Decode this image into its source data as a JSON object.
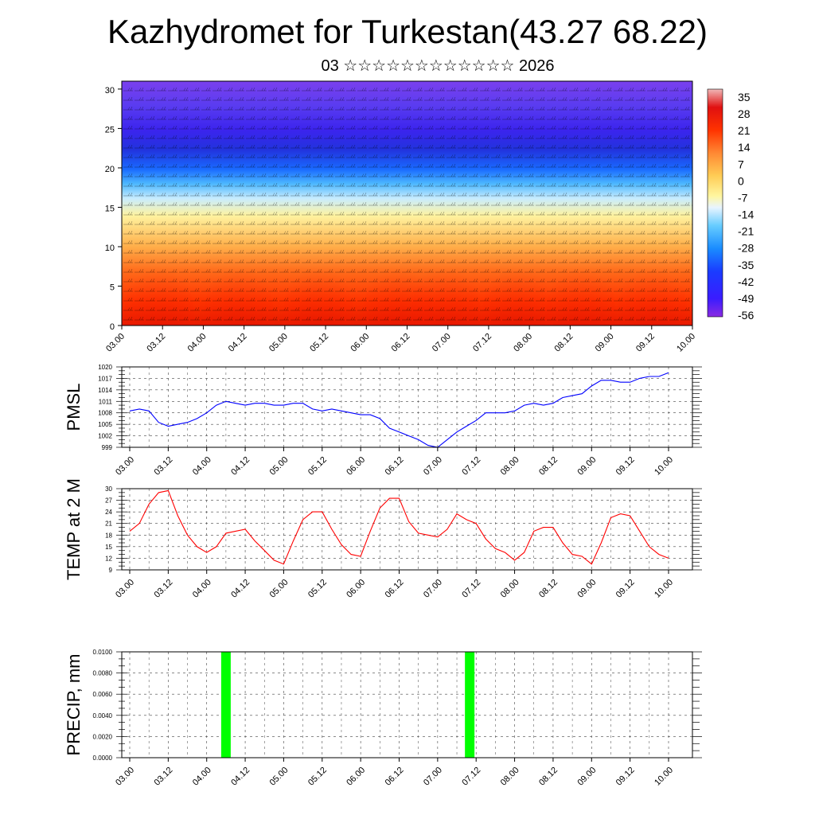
{
  "title": "Kazhydromet for Turkestan(43.27 68.22)",
  "subtitle": "03 ☆☆☆☆☆☆☆☆☆☆☆☆ 2026",
  "chart_data": [
    {
      "type": "heatmap",
      "id": "cross-section",
      "description_fields": "temperature cross-section with wind barbs",
      "x_ticks": [
        "03.00",
        "03.12",
        "04.00",
        "04.12",
        "05.00",
        "05.12",
        "06.00",
        "06.12",
        "07.00",
        "07.12",
        "08.00",
        "08.12",
        "09.00",
        "09.12",
        "10.00"
      ],
      "y_ticks": [
        "0",
        "5",
        "10",
        "15",
        "20",
        "25",
        "30"
      ],
      "ylim": [
        0,
        31
      ],
      "colorbar": {
        "labels": [
          "35",
          "28",
          "21",
          "14",
          "7",
          "0",
          "-7",
          "-14",
          "-21",
          "-28",
          "-35",
          "-42",
          "-49",
          "-56"
        ],
        "range": [
          -60,
          38
        ]
      }
    },
    {
      "type": "line",
      "id": "pmsl",
      "ylabel": "PMSL",
      "color": "#0000ff",
      "y_ticks": [
        "1020",
        "1017",
        "1014",
        "1011",
        "1008",
        "1005",
        "1002",
        "999"
      ],
      "ylim": [
        999,
        1020
      ],
      "x_ticks": [
        "03.00",
        "03.12",
        "04.00",
        "04.12",
        "05.00",
        "05.12",
        "06.00",
        "06.12",
        "07.00",
        "07.12",
        "08.00",
        "08.12",
        "09.00",
        "09.12",
        "10.00"
      ],
      "x_hours": [
        0,
        3,
        6,
        9,
        12,
        15,
        18,
        21,
        24,
        27,
        30,
        33,
        36,
        39,
        42,
        45,
        48,
        51,
        54,
        57,
        60,
        63,
        66,
        69,
        72,
        75,
        78,
        81,
        84,
        87,
        90,
        93,
        96,
        99,
        102,
        105,
        108,
        111,
        114,
        117,
        120,
        123,
        126,
        129,
        132,
        135,
        138,
        141,
        144,
        147,
        150,
        153,
        156,
        159,
        162,
        165,
        168
      ],
      "values": [
        1008.5,
        1009,
        1008.5,
        1005.5,
        1004.5,
        1005,
        1005.5,
        1006.5,
        1008,
        1010,
        1011,
        1010.5,
        1010,
        1010.5,
        1010.5,
        1010,
        1010,
        1010.5,
        1010.5,
        1009,
        1008.5,
        1009,
        1008.5,
        1008,
        1007.5,
        1007.5,
        1006.5,
        1004,
        1003,
        1002,
        1001,
        999.5,
        999,
        1001,
        1003,
        1004.5,
        1006,
        1008,
        1008,
        1008,
        1008.5,
        1010,
        1010.5,
        1010,
        1010.5,
        1012,
        1012.5,
        1013,
        1015,
        1016.5,
        1016.5,
        1016,
        1016,
        1017,
        1017.5,
        1017.5,
        1018.5
      ]
    },
    {
      "type": "line",
      "id": "temp2m",
      "ylabel": "TEMP at 2 M",
      "color": "#ff0000",
      "y_ticks": [
        "30",
        "27",
        "24",
        "21",
        "18",
        "15",
        "12",
        "9"
      ],
      "ylim": [
        9,
        30
      ],
      "x_ticks": [
        "03.00",
        "03.12",
        "04.00",
        "04.12",
        "05.00",
        "05.12",
        "06.00",
        "06.12",
        "07.00",
        "07.12",
        "08.00",
        "08.12",
        "09.00",
        "09.12",
        "10.00"
      ],
      "x_hours": [
        0,
        3,
        6,
        9,
        12,
        15,
        18,
        21,
        24,
        27,
        30,
        33,
        36,
        39,
        42,
        45,
        48,
        51,
        54,
        57,
        60,
        63,
        66,
        69,
        72,
        75,
        78,
        81,
        84,
        87,
        90,
        93,
        96,
        99,
        102,
        105,
        108,
        111,
        114,
        117,
        120,
        123,
        126,
        129,
        132,
        135,
        138,
        141,
        144,
        147,
        150,
        153,
        156,
        159,
        162,
        165,
        168
      ],
      "values": [
        19,
        21,
        26,
        29,
        29.5,
        23,
        18,
        15,
        13.5,
        15,
        18.5,
        19,
        19.5,
        16.5,
        14,
        11.5,
        10.5,
        16.5,
        22,
        24,
        24,
        19.5,
        15.5,
        13,
        12.5,
        19,
        25,
        27.5,
        27.5,
        21.5,
        18.5,
        18,
        17.5,
        19.5,
        23.5,
        22,
        21,
        17,
        14.5,
        13.5,
        11.5,
        13.5,
        19,
        20,
        20,
        16,
        13,
        12.5,
        10.5,
        16,
        22.5,
        23.5,
        23,
        19,
        15,
        13,
        12
      ]
    },
    {
      "type": "bar",
      "id": "precip",
      "ylabel": "PRECIP, mm",
      "color": "#00ff00",
      "y_ticks": [
        "0.0100",
        "0.0080",
        "0.0060",
        "0.0040",
        "0.0020",
        "0.0000"
      ],
      "ylim": [
        0,
        0.01
      ],
      "x_ticks": [
        "03.00",
        "03.12",
        "04.00",
        "04.12",
        "05.00",
        "05.12",
        "06.00",
        "06.12",
        "07.00",
        "07.12",
        "08.00",
        "08.12",
        "09.00",
        "09.12",
        "10.00"
      ],
      "bars": [
        {
          "x_hours": 30,
          "value": 0.01
        },
        {
          "x_hours": 106,
          "value": 0.01
        }
      ]
    }
  ]
}
